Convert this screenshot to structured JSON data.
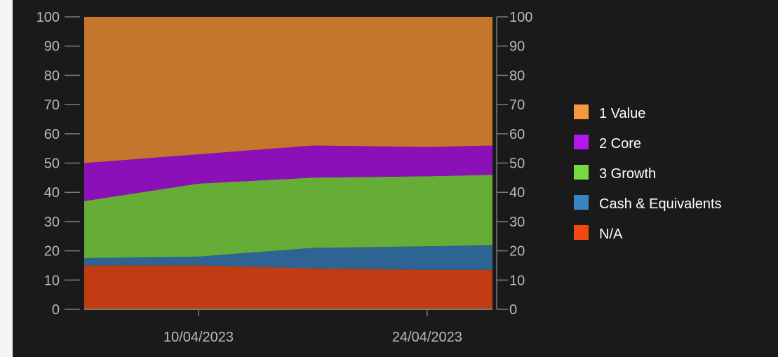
{
  "chart_data": {
    "type": "area",
    "stacked": true,
    "x": [
      "2023-04-03",
      "2023-04-10",
      "2023-04-17",
      "2023-04-24",
      "2023-04-28"
    ],
    "x_tick_labels": [
      "10/04/2023",
      "24/04/2023"
    ],
    "x_tick_values": [
      "2023-04-10",
      "2023-04-24"
    ],
    "ylim": [
      0,
      100
    ],
    "y_ticks": [
      0,
      10,
      20,
      30,
      40,
      50,
      60,
      70,
      80,
      90,
      100
    ],
    "y_axis_sides": [
      "left",
      "right"
    ],
    "grid": false,
    "legend_position": "right",
    "series": [
      {
        "name": "N/A",
        "color": "#c03c12",
        "legend_color": "#f04a12",
        "values": [
          15,
          15,
          14,
          13.5,
          13.5
        ]
      },
      {
        "name": "Cash & Equivalents",
        "color": "#2e6494",
        "legend_color": "#3a84c4",
        "values": [
          2.5,
          3,
          7,
          8,
          8.5
        ]
      },
      {
        "name": "3 Growth",
        "color": "#65ad37",
        "legend_color": "#78d93c",
        "values": [
          19.5,
          25,
          24,
          24,
          24
        ]
      },
      {
        "name": "2 Core",
        "color": "#8c10b8",
        "legend_color": "#b516ee",
        "values": [
          13,
          10,
          11,
          10,
          10
        ]
      },
      {
        "name": "1 Value",
        "color": "#c5762d",
        "legend_color": "#f5993c",
        "values": [
          50,
          47,
          44,
          44.5,
          44
        ]
      }
    ],
    "legend_order": [
      "1 Value",
      "2 Core",
      "3 Growth",
      "Cash & Equivalents",
      "N/A"
    ],
    "axis_color": "#7a7a7a",
    "background": "#1b1a1b"
  }
}
